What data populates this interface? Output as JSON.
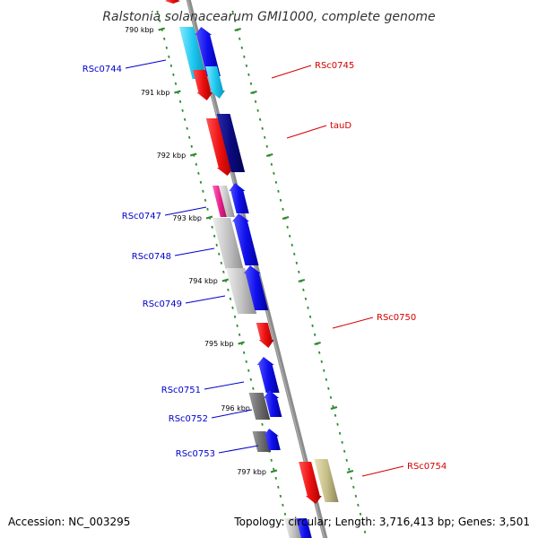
{
  "title": "Ralstonia solanacearum GMI1000, complete genome",
  "footer": {
    "accession": "Accession: NC_003295",
    "topology": "Topology: circular; Length: 3,716,413 bp; Genes: 3,501"
  },
  "colors": {
    "backbone": "#8c8c8c",
    "tick": "#2e8b2e",
    "reverse_label": "#0000cc",
    "forward_label": "#d40000",
    "gene_blue": "#1010ee",
    "gene_red": "#ee1010",
    "gene_navy": "#0a0a80",
    "gene_cyan": "#1ec8f0",
    "gene_magenta": "#e8208c",
    "gene_gray": "#c4c4c4",
    "gene_darkgray": "#6e6e6e",
    "gene_khaki": "#c8c08a"
  },
  "ticks": [
    {
      "label": "790 kbp"
    },
    {
      "label": "791 kbp"
    },
    {
      "label": "792 kbp"
    },
    {
      "label": "793 kbp"
    },
    {
      "label": "794 kbp"
    },
    {
      "label": "795 kbp"
    },
    {
      "label": "796 kbp"
    },
    {
      "label": "797 kbp"
    }
  ],
  "gene_labels": [
    {
      "text": "RSc0744",
      "side": "reverse"
    },
    {
      "text": "RSc0745",
      "side": "forward"
    },
    {
      "text": "tauD",
      "side": "forward"
    },
    {
      "text": "RSc0747",
      "side": "reverse"
    },
    {
      "text": "RSc0748",
      "side": "reverse"
    },
    {
      "text": "RSc0749",
      "side": "reverse"
    },
    {
      "text": "RSc0750",
      "side": "forward"
    },
    {
      "text": "RSc0751",
      "side": "reverse"
    },
    {
      "text": "RSc0752",
      "side": "reverse"
    },
    {
      "text": "RSc0753",
      "side": "reverse"
    },
    {
      "text": "RSc0754",
      "side": "forward"
    }
  ]
}
